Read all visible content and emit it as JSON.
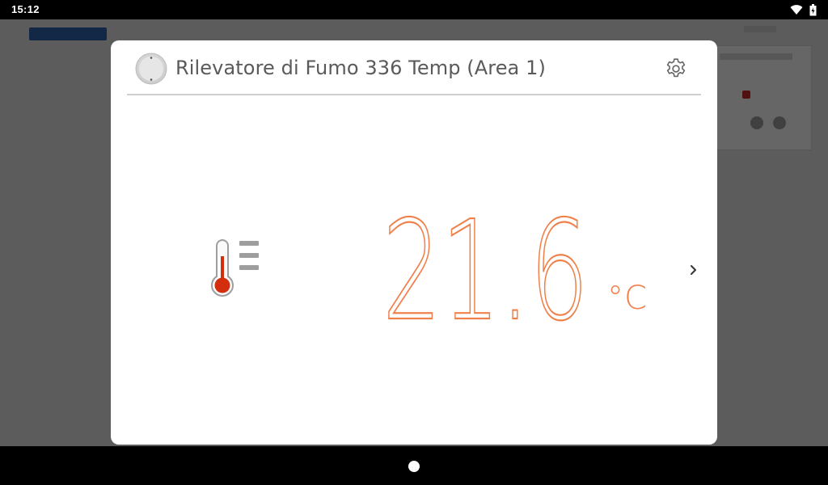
{
  "status_bar": {
    "time": "15:12",
    "icons": [
      "wifi-icon",
      "battery-icon"
    ]
  },
  "dialog": {
    "title": "Rilevatore di Fumo 336 Temp (Area 1)",
    "device_icon": "smoke-detector-icon",
    "settings_icon": "gear-icon",
    "sensor_icon": "thermometer-icon",
    "temperature": {
      "value": "21.6",
      "unit": "°C"
    },
    "next_icon": "chevron-right-icon"
  },
  "navigation_bar": {
    "home_icon": "home-dot-icon"
  },
  "colors": {
    "accent": "#f0804a",
    "title_text": "#5a5a5a",
    "thermometer_red": "#d32f0f",
    "scrim": "#000000"
  }
}
